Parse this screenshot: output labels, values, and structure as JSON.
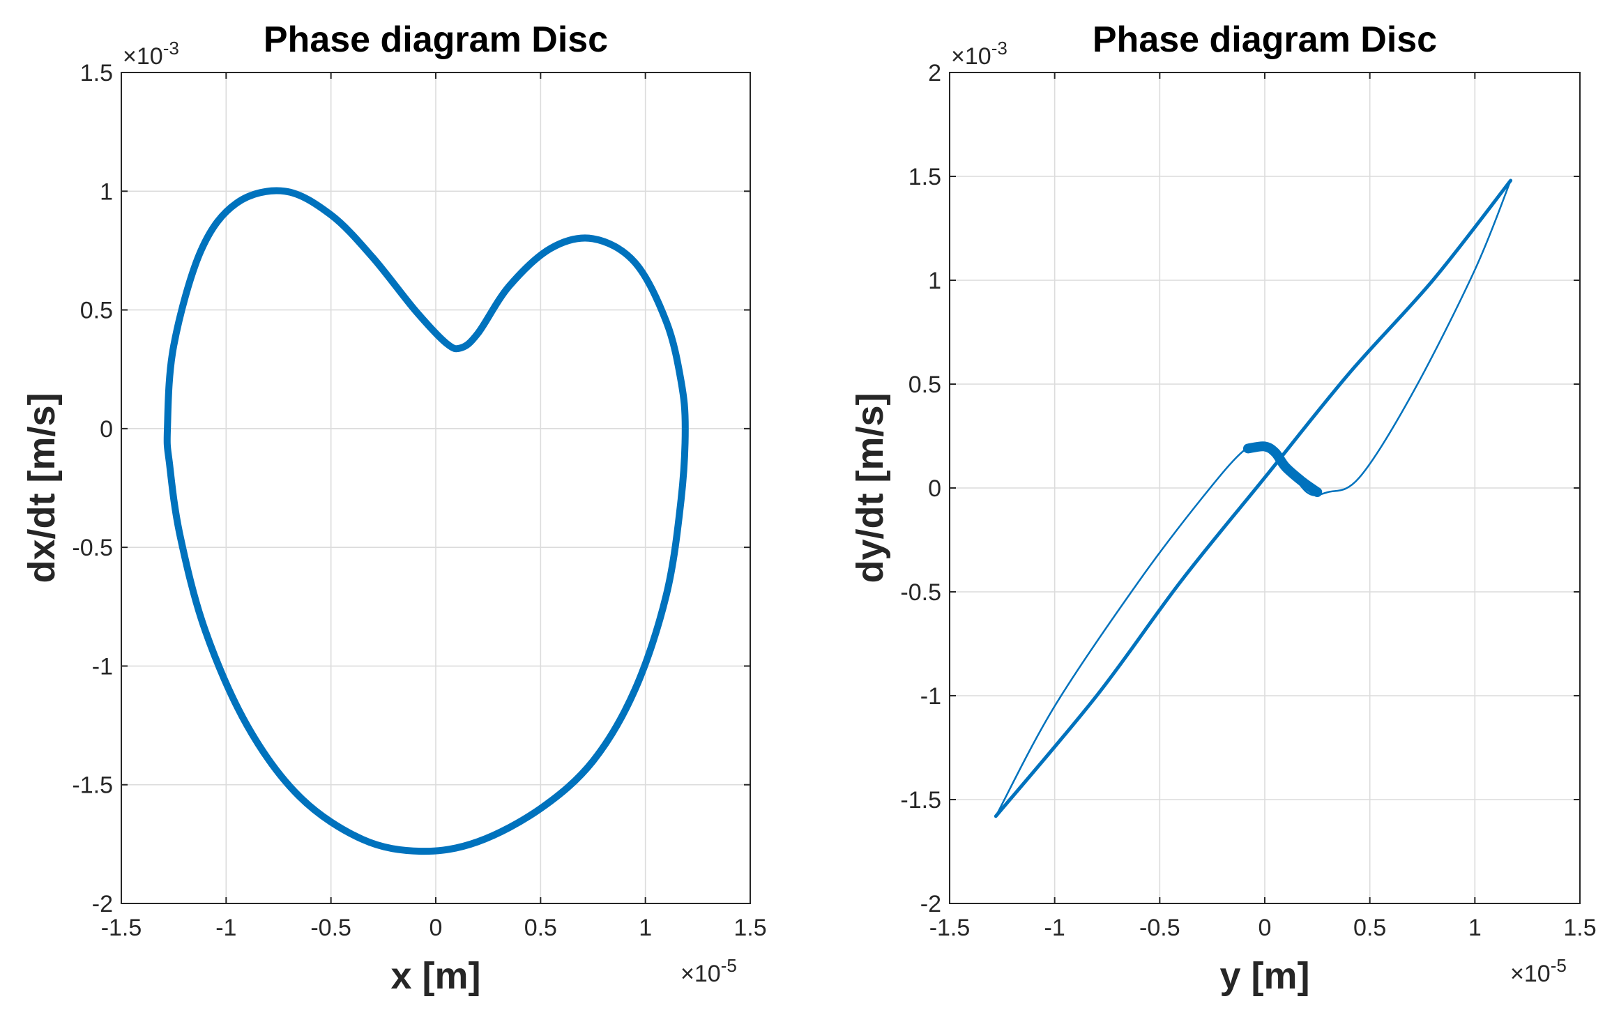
{
  "colors": {
    "line": "#0072bd",
    "grid": "#dcdcdc",
    "axis": "#262626"
  },
  "chart_data": [
    {
      "type": "line",
      "title": "Phase diagram Disc",
      "xlabel": "x [m]",
      "ylabel": "dx/dt [m/s]",
      "x_exponent_label": "×10",
      "x_exponent_power": "-5",
      "y_exponent_label": "×10",
      "y_exponent_power": "-3",
      "xlim": [
        -1.5,
        1.5
      ],
      "ylim": [
        -2,
        1.5
      ],
      "xticks": [
        -1.5,
        -1,
        -0.5,
        0,
        0.5,
        1,
        1.5
      ],
      "xtick_labels": [
        "-1.5",
        "-1",
        "-0.5",
        "0",
        "0.5",
        "1",
        "1.5"
      ],
      "yticks": [
        -2,
        -1.5,
        -1,
        -0.5,
        0,
        0.5,
        1,
        1.5
      ],
      "ytick_labels": [
        "-2",
        "-1.5",
        "-1",
        "-0.5",
        "0",
        "0.5",
        "1",
        "1.5"
      ],
      "grid": true,
      "series": [
        {
          "name": "phase trajectory x",
          "x": [
            -1.28,
            -1.25,
            -1.12,
            -0.95,
            -0.72,
            -0.5,
            -0.3,
            -0.1,
            0.05,
            0.12,
            0.2,
            0.35,
            0.55,
            0.75,
            0.95,
            1.1,
            1.17,
            1.19,
            1.17,
            1.1,
            0.95,
            0.75,
            0.5,
            0.2,
            -0.07,
            -0.35,
            -0.65,
            -0.9,
            -1.1,
            -1.22,
            -1.27,
            -1.28
          ],
          "y": [
            0.0,
            0.35,
            0.75,
            0.95,
            1.0,
            0.9,
            0.72,
            0.5,
            0.36,
            0.34,
            0.4,
            0.6,
            0.76,
            0.8,
            0.7,
            0.45,
            0.2,
            0.0,
            -0.3,
            -0.7,
            -1.1,
            -1.4,
            -1.6,
            -1.74,
            -1.78,
            -1.73,
            -1.55,
            -1.25,
            -0.85,
            -0.45,
            -0.15,
            0.0
          ],
          "width": 10
        }
      ]
    },
    {
      "type": "line",
      "title": "Phase diagram Disc",
      "xlabel": "y [m]",
      "ylabel": "dy/dt [m/s]",
      "x_exponent_label": "×10",
      "x_exponent_power": "-5",
      "y_exponent_label": "×10",
      "y_exponent_power": "-3",
      "xlim": [
        -1.5,
        1.5
      ],
      "ylim": [
        -2,
        2
      ],
      "xticks": [
        -1.5,
        -1,
        -0.5,
        0,
        0.5,
        1,
        1.5
      ],
      "xtick_labels": [
        "-1.5",
        "-1",
        "-0.5",
        "0",
        "0.5",
        "1",
        "1.5"
      ],
      "yticks": [
        -2,
        -1.5,
        -1,
        -0.5,
        0,
        0.5,
        1,
        1.5,
        2
      ],
      "ytick_labels": [
        "-2",
        "-1.5",
        "-1",
        "-0.5",
        "0",
        "0.5",
        "1",
        "1.5",
        "2"
      ],
      "grid": true,
      "series": [
        {
          "name": "diagonal branch",
          "x": [
            -1.28,
            -0.8,
            -0.4,
            0.0,
            0.4,
            0.8,
            1.17
          ],
          "y": [
            -1.58,
            -1.0,
            -0.45,
            0.05,
            0.55,
            1.0,
            1.48
          ],
          "width": 5
        },
        {
          "name": "upper-left loop branch",
          "x": [
            -1.28,
            -1.0,
            -0.6,
            -0.3,
            -0.1,
            0.0,
            0.08
          ],
          "y": [
            -1.58,
            -1.05,
            -0.45,
            -0.05,
            0.18,
            0.2,
            0.15
          ],
          "width": 2.5
        },
        {
          "name": "lower-right loop branch",
          "x": [
            1.17,
            1.0,
            0.7,
            0.45,
            0.3,
            0.2,
            0.08
          ],
          "y": [
            1.48,
            1.05,
            0.45,
            0.05,
            -0.02,
            -0.02,
            0.15
          ],
          "width": 2.5
        },
        {
          "name": "central knot",
          "x": [
            -0.08,
            0.0,
            0.05,
            0.1,
            0.18,
            0.25
          ],
          "y": [
            0.19,
            0.2,
            0.17,
            0.1,
            0.03,
            -0.02
          ],
          "width": 14
        }
      ]
    }
  ]
}
